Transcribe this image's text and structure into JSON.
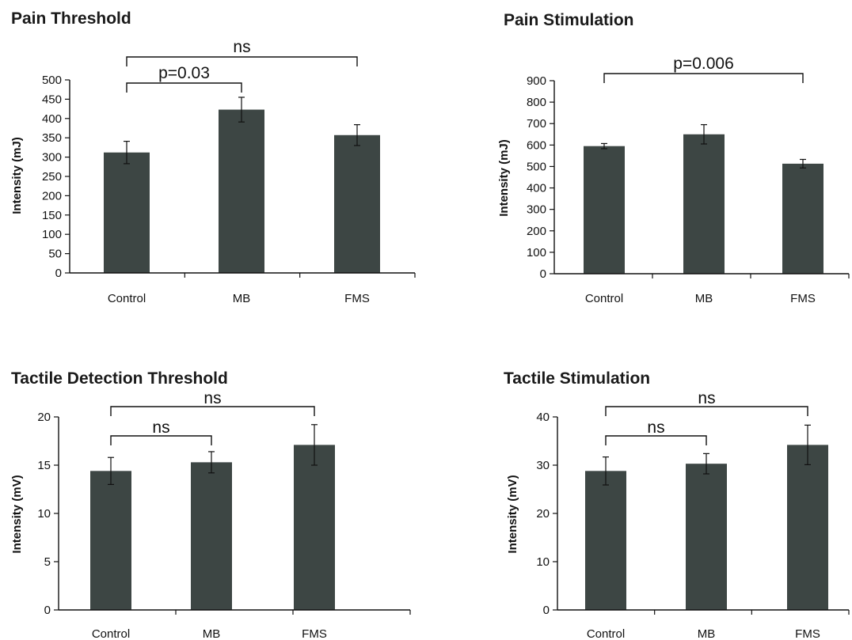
{
  "chart_data": [
    {
      "type": "bar",
      "title": "Pain Threshold",
      "ylabel": "Intensity (mJ)",
      "xlabel": "",
      "categories": [
        "Control",
        "MB",
        "FMS"
      ],
      "values": [
        312,
        423,
        357
      ],
      "errors": [
        29,
        32,
        27
      ],
      "ylim": [
        0,
        500
      ],
      "yticks": [
        0,
        50,
        100,
        150,
        200,
        250,
        300,
        350,
        400,
        450,
        500
      ],
      "brackets": [
        {
          "from": 0,
          "to": 2,
          "label": "ns"
        },
        {
          "from": 0,
          "to": 1,
          "label": "p=0.03"
        }
      ]
    },
    {
      "type": "bar",
      "title": "Pain Stimulation",
      "ylabel": "Intensity (mJ)",
      "xlabel": "",
      "categories": [
        "Control",
        "MB",
        "FMS"
      ],
      "values": [
        595,
        650,
        513
      ],
      "errors": [
        12,
        45,
        20
      ],
      "ylim": [
        0,
        900
      ],
      "yticks": [
        0,
        100,
        200,
        300,
        400,
        500,
        600,
        700,
        800,
        900
      ],
      "brackets": [
        {
          "from": 0,
          "to": 2,
          "label": "p=0.006"
        }
      ]
    },
    {
      "type": "bar",
      "title": "Tactile Detection Threshold",
      "ylabel": "Intensity (mV)",
      "xlabel": "",
      "categories": [
        "Control",
        "MB",
        "FMS"
      ],
      "values": [
        14.4,
        15.3,
        17.1
      ],
      "errors": [
        1.4,
        1.1,
        2.1
      ],
      "ylim": [
        0,
        20
      ],
      "yticks": [
        0,
        5,
        10,
        15,
        20
      ],
      "brackets": [
        {
          "from": 0,
          "to": 2,
          "label": "ns"
        },
        {
          "from": 0,
          "to": 1,
          "label": "ns"
        }
      ]
    },
    {
      "type": "bar",
      "title": "Tactile Stimulation",
      "ylabel": "Intensity (mV)",
      "xlabel": "",
      "categories": [
        "Control",
        "MB",
        "FMS"
      ],
      "values": [
        28.8,
        30.3,
        34.2
      ],
      "errors": [
        2.9,
        2.1,
        4.1
      ],
      "ylim": [
        0,
        40
      ],
      "yticks": [
        0,
        10,
        20,
        30,
        40
      ],
      "brackets": [
        {
          "from": 0,
          "to": 2,
          "label": "ns"
        },
        {
          "from": 0,
          "to": 1,
          "label": "ns"
        }
      ]
    }
  ],
  "colors": {
    "bar": "#3d4644",
    "axis": "#111111",
    "text": "#111111"
  }
}
